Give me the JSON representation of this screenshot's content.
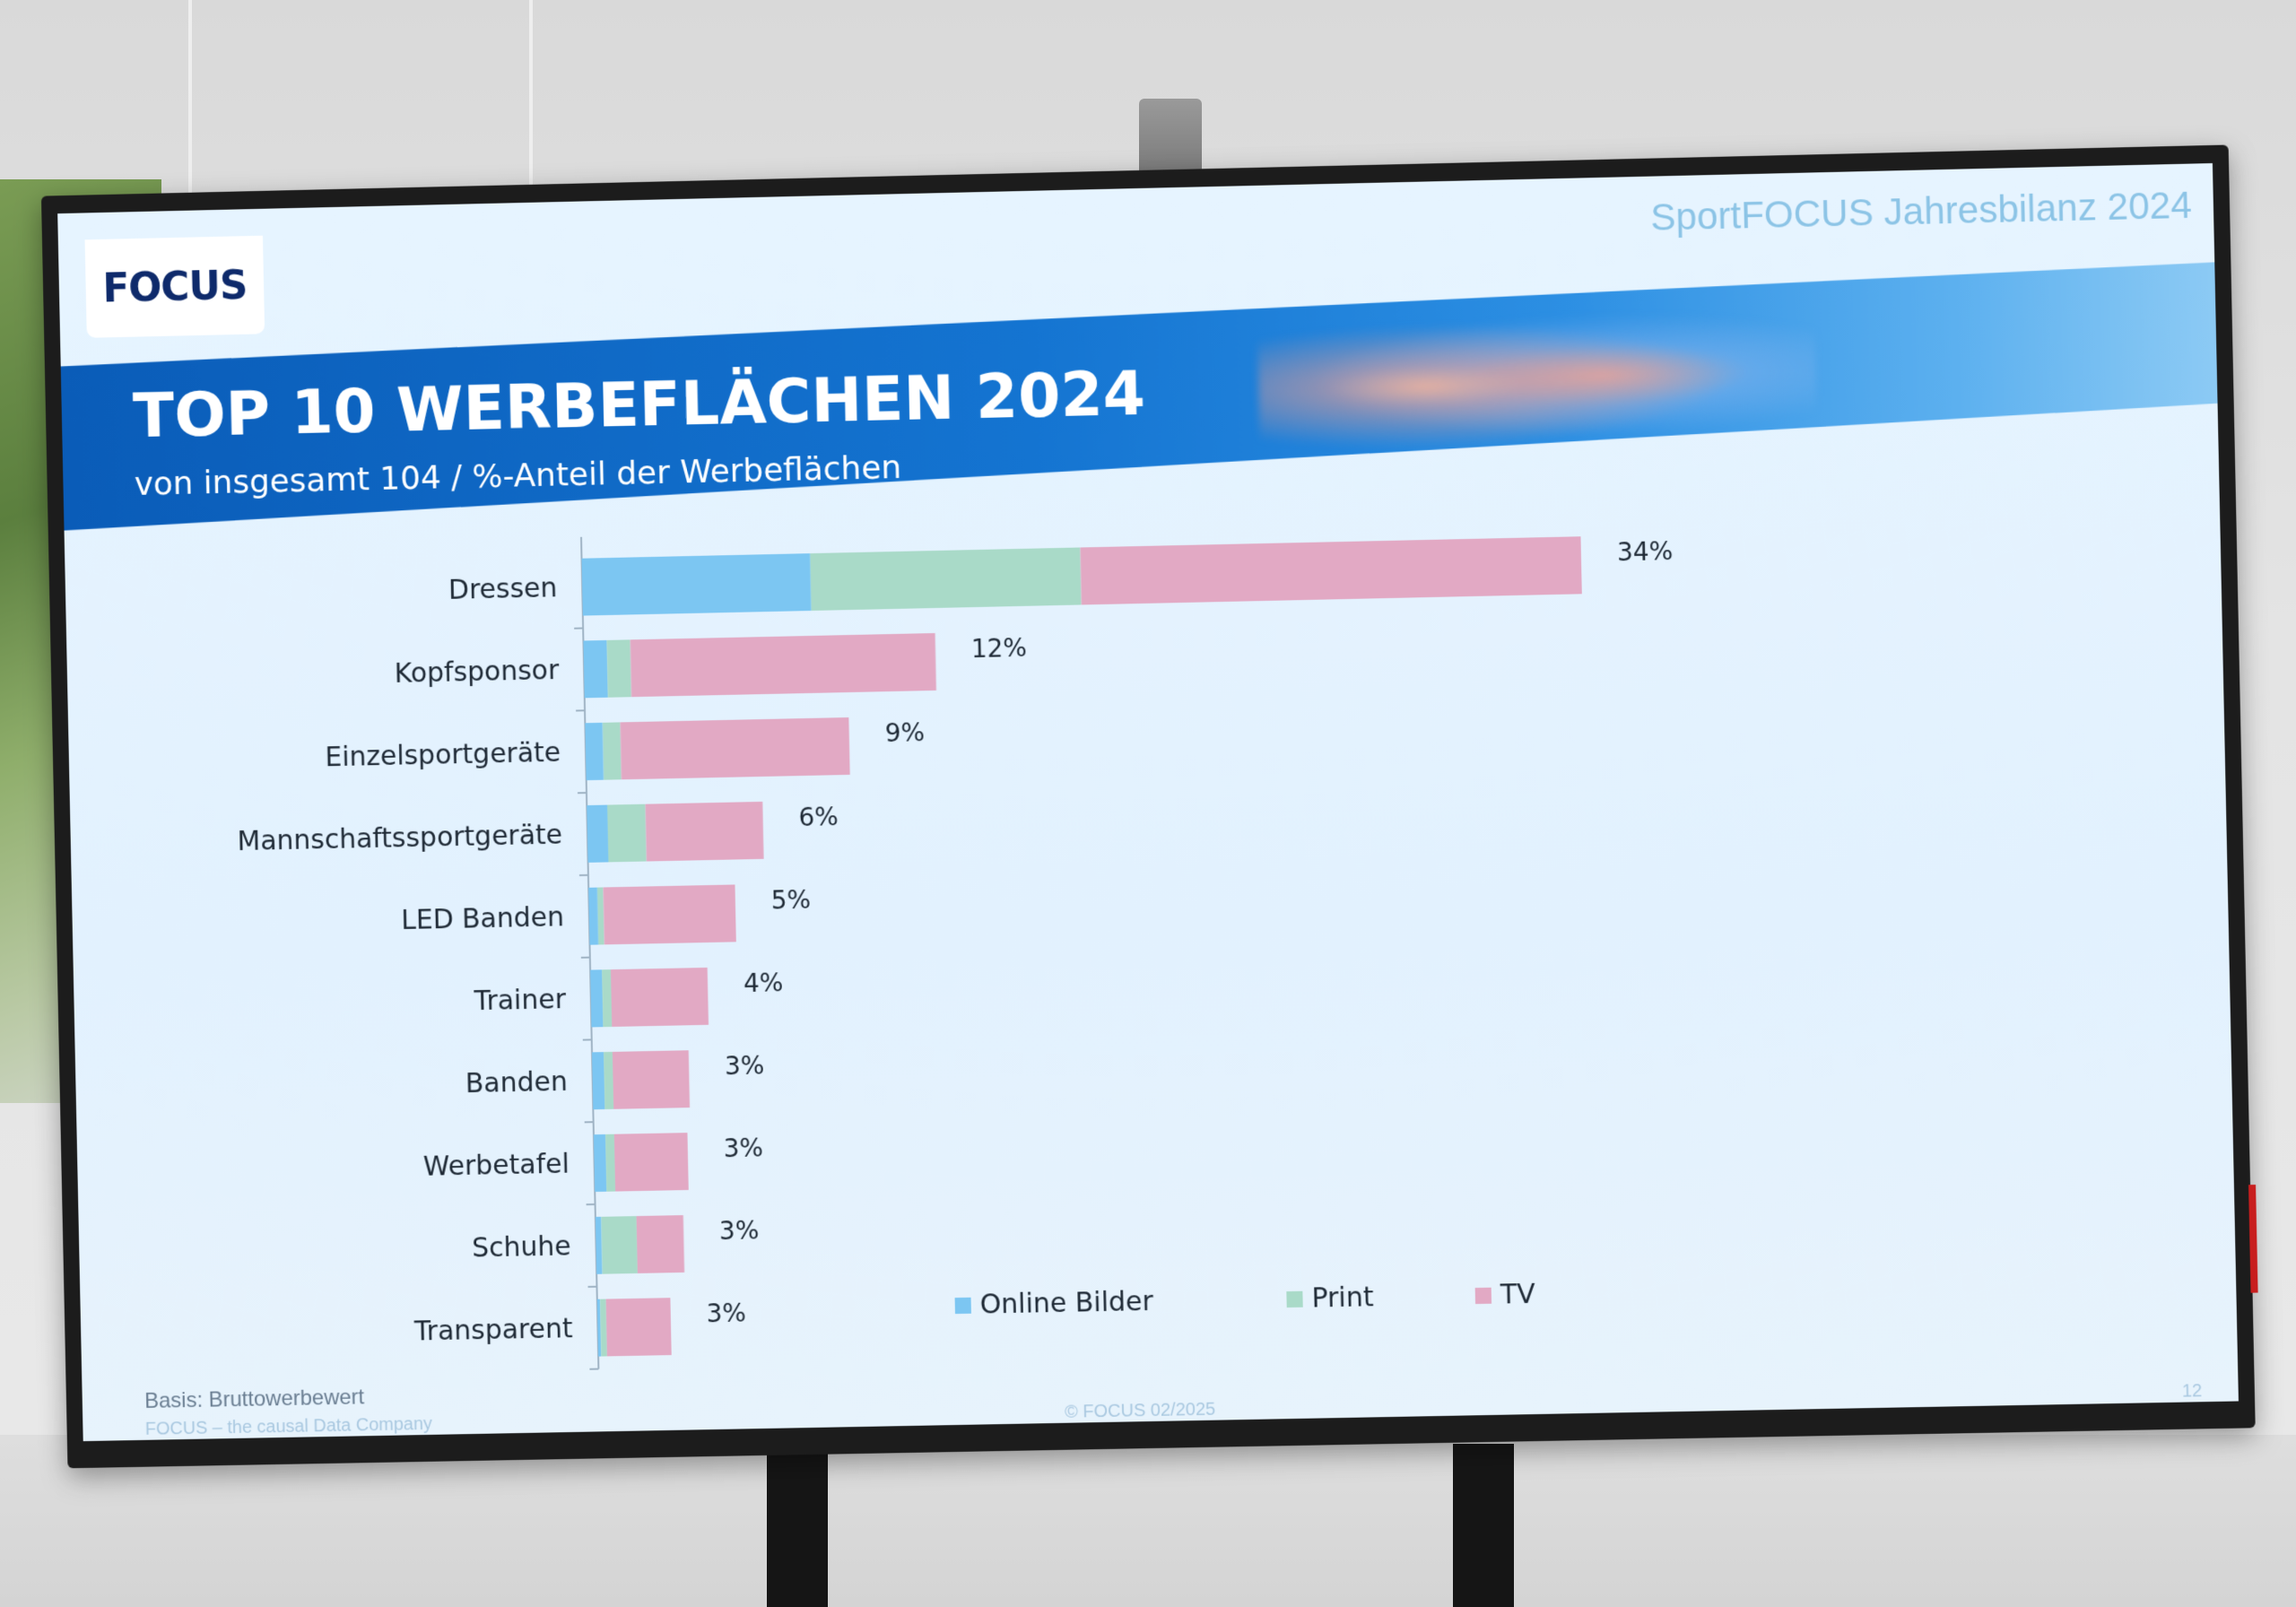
{
  "header": {
    "logo_text": "FOCUS",
    "report_title": "SportFOCUS Jahresbilanz 2024",
    "title": "TOP 10 WERBEFLÄCHEN 2024",
    "subtitle": "von insgesamt 104 / %-Anteil der Werbeflächen"
  },
  "footer": {
    "basis": "Basis: Bruttowerbewert",
    "company": "FOCUS – the causal Data Company",
    "copyright": "© FOCUS 02/2025",
    "page_number": "12"
  },
  "colors": {
    "online": "#7cc6f2",
    "print": "#a9dac8",
    "tv": "#e2a9c4"
  },
  "chart_data": {
    "type": "bar",
    "orientation": "horizontal",
    "stacked": true,
    "categories": [
      "Dressen",
      "Kopfsponsor",
      "Einzelsportgeräte",
      "Mannschaftssportgeräte",
      "LED Banden",
      "Trainer",
      "Banden",
      "Werbetafel",
      "Schuhe",
      "Transparent"
    ],
    "series": [
      {
        "name": "Online Bilder",
        "color": "#7cc6f2",
        "values": [
          7.8,
          0.8,
          0.6,
          0.7,
          0.3,
          0.4,
          0.4,
          0.4,
          0.2,
          0.1
        ]
      },
      {
        "name": "Print",
        "color": "#a9dac8",
        "values": [
          9.2,
          0.8,
          0.6,
          1.3,
          0.2,
          0.3,
          0.3,
          0.3,
          1.2,
          0.2
        ]
      },
      {
        "name": "TV",
        "color": "#e2a9c4",
        "values": [
          17.0,
          10.4,
          7.8,
          4.0,
          4.5,
          3.3,
          2.6,
          2.5,
          1.6,
          2.2
        ]
      }
    ],
    "totals_labels": [
      "34%",
      "12%",
      "9%",
      "6%",
      "5%",
      "4%",
      "3%",
      "3%",
      "3%",
      "3%"
    ],
    "xlim": [
      0,
      34
    ],
    "grid": false,
    "legend": "bottom-center"
  }
}
